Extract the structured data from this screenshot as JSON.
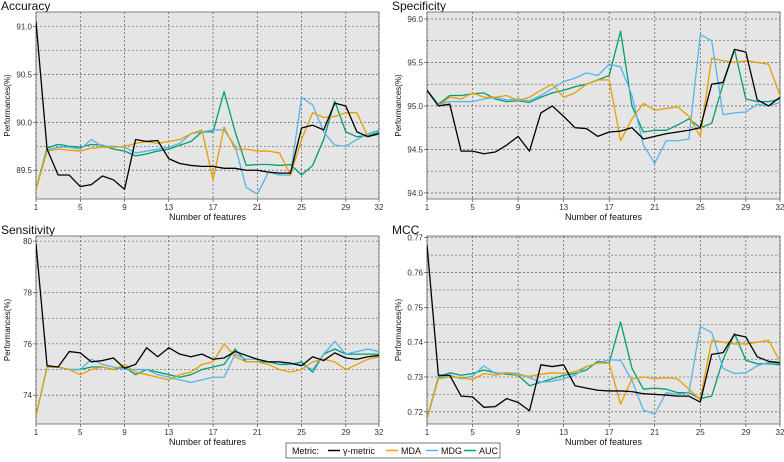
{
  "legend": {
    "title": "Metric:",
    "entries": [
      {
        "name": "γ-metric",
        "color": "#000000"
      },
      {
        "name": "MDA",
        "color": "#E69F00"
      },
      {
        "name": "MDG",
        "color": "#56B4E9"
      },
      {
        "name": "AUC",
        "color": "#009E73"
      }
    ]
  },
  "chart_data": [
    {
      "type": "line",
      "title": "Accuracy",
      "xlabel": "Number of features",
      "ylabel": "Performances(%)",
      "xlim": [
        1,
        32
      ],
      "ylim": [
        89.2,
        91.15
      ],
      "xticks": [
        1,
        5,
        9,
        13,
        17,
        21,
        25,
        29,
        32
      ],
      "yticks": [
        89.5,
        90.0,
        90.5,
        91.0
      ],
      "ytick_labels": [
        "89.5",
        "90.0",
        "90.5",
        "91.0"
      ],
      "x": [
        1,
        2,
        3,
        4,
        5,
        6,
        7,
        8,
        9,
        10,
        11,
        12,
        13,
        14,
        15,
        16,
        17,
        18,
        19,
        20,
        21,
        22,
        23,
        24,
        25,
        26,
        27,
        28,
        29,
        30,
        31,
        32
      ],
      "series": [
        {
          "name": "γ-metric",
          "values": [
            91.05,
            89.72,
            89.45,
            89.45,
            89.33,
            89.35,
            89.44,
            89.4,
            89.3,
            89.82,
            89.8,
            89.81,
            89.62,
            89.57,
            89.55,
            89.54,
            89.54,
            89.52,
            89.52,
            89.5,
            89.5,
            89.48,
            89.47,
            89.47,
            89.94,
            89.97,
            89.92,
            90.2,
            90.17,
            89.9,
            89.85,
            89.88
          ]
        },
        {
          "name": "MDA",
          "values": [
            89.3,
            89.7,
            89.72,
            89.71,
            89.7,
            89.73,
            89.74,
            89.74,
            89.75,
            89.78,
            89.8,
            89.78,
            89.8,
            89.82,
            89.88,
            89.92,
            89.4,
            89.95,
            89.72,
            89.72,
            89.7,
            89.7,
            89.68,
            89.45,
            89.82,
            90.1,
            90.05,
            90.06,
            90.1,
            90.1,
            89.85,
            89.88
          ]
        },
        {
          "name": "MDG",
          "values": [
            89.3,
            89.71,
            89.74,
            89.74,
            89.72,
            89.82,
            89.75,
            89.75,
            89.74,
            89.68,
            89.7,
            89.72,
            89.74,
            89.78,
            89.88,
            89.9,
            89.92,
            89.92,
            89.75,
            89.32,
            89.25,
            89.48,
            89.45,
            89.45,
            90.26,
            90.18,
            89.9,
            89.76,
            89.75,
            89.82,
            89.88,
            89.92
          ]
        },
        {
          "name": "AUC",
          "values": [
            89.3,
            89.73,
            89.77,
            89.75,
            89.74,
            89.77,
            89.76,
            89.72,
            89.7,
            89.65,
            89.67,
            89.7,
            89.72,
            89.76,
            89.8,
            89.9,
            89.9,
            90.32,
            89.9,
            89.55,
            89.56,
            89.56,
            89.55,
            89.56,
            89.45,
            89.55,
            89.82,
            90.22,
            89.9,
            89.85,
            89.86,
            89.9
          ]
        }
      ]
    },
    {
      "type": "line",
      "title": "Specificity",
      "xlabel": "Number of features",
      "ylabel": "Performances(%)",
      "xlim": [
        1,
        32
      ],
      "ylim": [
        93.93,
        96.08
      ],
      "xticks": [
        1,
        5,
        9,
        13,
        17,
        21,
        25,
        29,
        32
      ],
      "yticks": [
        94.0,
        94.5,
        95.0,
        95.5,
        96.0
      ],
      "ytick_labels": [
        "94.0",
        "94.5",
        "95.0",
        "95.5",
        "96.0"
      ],
      "x": [
        1,
        2,
        3,
        4,
        5,
        6,
        7,
        8,
        9,
        10,
        11,
        12,
        13,
        14,
        15,
        16,
        17,
        18,
        19,
        20,
        21,
        22,
        23,
        24,
        25,
        26,
        27,
        28,
        29,
        30,
        31,
        32
      ],
      "series": [
        {
          "name": "γ-metric",
          "values": [
            95.18,
            95.0,
            95.02,
            94.48,
            94.48,
            94.45,
            94.47,
            94.55,
            94.65,
            94.48,
            94.92,
            95.0,
            94.88,
            94.75,
            94.74,
            94.65,
            94.7,
            94.71,
            94.75,
            94.62,
            94.65,
            94.68,
            94.7,
            94.72,
            94.75,
            95.25,
            95.27,
            95.65,
            95.62,
            95.07,
            95.0,
            95.1
          ]
        },
        {
          "name": "MDA",
          "values": [
            95.18,
            95.0,
            95.1,
            95.08,
            95.15,
            95.1,
            95.1,
            95.12,
            95.06,
            95.1,
            95.18,
            95.25,
            95.1,
            95.15,
            95.25,
            95.3,
            95.3,
            94.6,
            94.85,
            95.03,
            94.95,
            94.97,
            94.99,
            94.88,
            94.65,
            95.55,
            95.52,
            95.5,
            95.52,
            95.5,
            95.48,
            95.12
          ]
        },
        {
          "name": "MDG",
          "values": [
            95.18,
            95.02,
            95.05,
            95.05,
            95.05,
            95.08,
            95.1,
            95.07,
            95.08,
            95.06,
            95.12,
            95.2,
            95.28,
            95.32,
            95.38,
            95.35,
            95.48,
            95.45,
            95.12,
            94.55,
            94.34,
            94.6,
            94.6,
            94.62,
            95.82,
            95.75,
            94.9,
            94.92,
            94.93,
            95.02,
            95.0,
            95.04
          ]
        },
        {
          "name": "AUC",
          "values": [
            95.18,
            95.02,
            95.12,
            95.12,
            95.14,
            95.15,
            95.08,
            95.05,
            95.06,
            95.04,
            95.1,
            95.15,
            95.18,
            95.22,
            95.25,
            95.3,
            95.35,
            95.86,
            95.0,
            94.7,
            94.72,
            94.72,
            94.78,
            94.85,
            94.75,
            94.8,
            95.25,
            95.65,
            95.08,
            95.05,
            95.05,
            95.08
          ]
        }
      ]
    },
    {
      "type": "line",
      "title": "Sensitivity",
      "xlabel": "Number of features",
      "ylabel": "Performances(%)",
      "xlim": [
        1,
        32
      ],
      "ylim": [
        72.88,
        80.2
      ],
      "xticks": [
        1,
        5,
        9,
        13,
        17,
        21,
        25,
        29,
        32
      ],
      "yticks": [
        74,
        76,
        78,
        80
      ],
      "ytick_labels": [
        "74",
        "76",
        "78",
        "80"
      ],
      "x": [
        1,
        2,
        3,
        4,
        5,
        6,
        7,
        8,
        9,
        10,
        11,
        12,
        13,
        14,
        15,
        16,
        17,
        18,
        19,
        20,
        21,
        22,
        23,
        24,
        25,
        26,
        27,
        28,
        29,
        30,
        31,
        32
      ],
      "series": [
        {
          "name": "γ-metric",
          "values": [
            79.9,
            75.15,
            75.1,
            75.7,
            75.65,
            75.3,
            75.35,
            75.45,
            75.05,
            75.2,
            75.85,
            75.5,
            75.85,
            75.6,
            75.5,
            75.6,
            75.4,
            75.45,
            75.7,
            75.55,
            75.4,
            75.3,
            75.3,
            75.25,
            75.15,
            75.5,
            75.35,
            75.65,
            75.45,
            75.4,
            75.5,
            75.55
          ]
        },
        {
          "name": "MDA",
          "values": [
            73.2,
            75.1,
            75.1,
            75.0,
            74.8,
            75.0,
            75.1,
            75.0,
            75.2,
            74.9,
            74.8,
            74.7,
            74.6,
            74.8,
            74.9,
            75.2,
            75.3,
            76.0,
            75.5,
            75.3,
            75.3,
            75.2,
            75.0,
            74.9,
            75.0,
            75.3,
            75.4,
            75.3,
            75.0,
            75.2,
            75.4,
            75.5
          ]
        },
        {
          "name": "MDG",
          "values": [
            73.2,
            75.1,
            75.1,
            75.0,
            75.0,
            75.4,
            75.2,
            75.1,
            75.0,
            75.0,
            75.0,
            74.8,
            74.7,
            74.6,
            74.5,
            74.6,
            74.7,
            74.7,
            75.6,
            75.4,
            75.4,
            75.3,
            75.3,
            75.2,
            75.2,
            75.0,
            75.6,
            76.1,
            75.6,
            75.7,
            75.8,
            75.7
          ]
        },
        {
          "name": "AUC",
          "values": [
            73.2,
            75.1,
            75.1,
            75.0,
            75.0,
            75.1,
            75.1,
            75.0,
            75.1,
            74.8,
            75.0,
            74.9,
            74.8,
            74.7,
            74.8,
            75.0,
            75.1,
            75.2,
            75.8,
            75.3,
            75.3,
            75.3,
            75.2,
            75.2,
            75.3,
            74.9,
            75.6,
            75.8,
            75.6,
            75.6,
            75.6,
            75.6
          ]
        }
      ]
    },
    {
      "type": "line",
      "title": "MCC",
      "xlabel": "Number of features",
      "ylabel": "Performances(%)",
      "xlim": [
        1,
        32
      ],
      "ylim": [
        0.7165,
        0.7705
      ],
      "xticks": [
        1,
        5,
        9,
        13,
        17,
        21,
        25,
        29,
        32
      ],
      "yticks": [
        0.72,
        0.73,
        0.74,
        0.75,
        0.76,
        0.77
      ],
      "ytick_labels": [
        "0.72",
        "0.73",
        "0.74",
        "0.75",
        "0.76",
        "0.77"
      ],
      "x": [
        1,
        2,
        3,
        4,
        5,
        6,
        7,
        8,
        9,
        10,
        11,
        12,
        13,
        14,
        15,
        16,
        17,
        18,
        19,
        20,
        21,
        22,
        23,
        24,
        25,
        26,
        27,
        28,
        29,
        30,
        31,
        32
      ],
      "series": [
        {
          "name": "γ-metric",
          "values": [
            0.768,
            0.7305,
            0.7305,
            0.7245,
            0.7243,
            0.7213,
            0.7215,
            0.7238,
            0.7227,
            0.7203,
            0.7335,
            0.733,
            0.7335,
            0.7275,
            0.7268,
            0.7262,
            0.726,
            0.726,
            0.7258,
            0.7252,
            0.725,
            0.7248,
            0.7245,
            0.7245,
            0.7228,
            0.7365,
            0.737,
            0.7422,
            0.7415,
            0.7358,
            0.7345,
            0.734
          ]
        },
        {
          "name": "MDA",
          "values": [
            0.718,
            0.7295,
            0.73,
            0.7298,
            0.7293,
            0.731,
            0.7305,
            0.7312,
            0.7305,
            0.7302,
            0.7308,
            0.7312,
            0.731,
            0.7315,
            0.733,
            0.734,
            0.734,
            0.7222,
            0.7295,
            0.73,
            0.7295,
            0.7298,
            0.7295,
            0.7265,
            0.7235,
            0.7405,
            0.74,
            0.7395,
            0.7395,
            0.74,
            0.7405,
            0.7345
          ]
        },
        {
          "name": "MDG",
          "values": [
            0.718,
            0.7298,
            0.7305,
            0.7295,
            0.7303,
            0.7332,
            0.731,
            0.7312,
            0.731,
            0.7298,
            0.7285,
            0.7288,
            0.7295,
            0.7305,
            0.733,
            0.734,
            0.735,
            0.7348,
            0.729,
            0.7205,
            0.7193,
            0.7255,
            0.725,
            0.7255,
            0.7445,
            0.7428,
            0.7325,
            0.731,
            0.7312,
            0.7332,
            0.7342,
            0.7345
          ]
        },
        {
          "name": "AUC",
          "values": [
            0.718,
            0.73,
            0.7312,
            0.7305,
            0.731,
            0.732,
            0.7312,
            0.7308,
            0.7305,
            0.7275,
            0.7285,
            0.7295,
            0.7305,
            0.731,
            0.732,
            0.7345,
            0.734,
            0.7458,
            0.7325,
            0.7265,
            0.7268,
            0.7265,
            0.7255,
            0.7255,
            0.7238,
            0.7245,
            0.735,
            0.7425,
            0.7348,
            0.7338,
            0.7338,
            0.7335
          ]
        }
      ]
    }
  ]
}
